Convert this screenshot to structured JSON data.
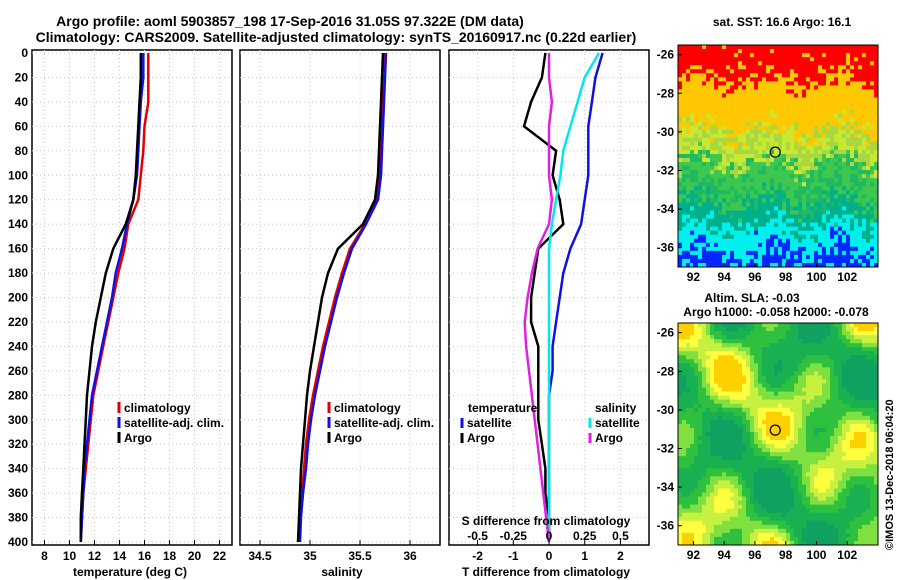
{
  "titles": {
    "line1": "Argo profile: aoml 5903857_198 17-Sep-2016 31.05S 97.322E (DM data)",
    "line2": "Climatology: CARS2009. Satellite-adjusted climatology: synTS_20160917.nc (0.22d earlier)",
    "sst": "sat. SST: 16.6 Argo: 16.1",
    "sla1": "Altim. SLA: -0.03",
    "sla2": "Argo h1000: -0.058 h2000: -0.078",
    "stamp": "©IMOS 13-Dec-2018 06:04:20"
  },
  "colors": {
    "climatology": "#e00000",
    "satellite": "#1010e0",
    "argo": "#000000",
    "sat_salinity": "#00e8e8",
    "argo_salinity": "#e020e0",
    "grid": "#c8c8c8"
  },
  "legends": {
    "climatology": "climatology",
    "satellite_adj": "satellite-adj. clim.",
    "argo": "Argo",
    "temperature_head": "temperature",
    "salinity_head": "salinity",
    "satellite": "satellite"
  },
  "chart_data": [
    {
      "type": "line",
      "title": "",
      "xlabel": "temperature (deg C)",
      "ylabel": "",
      "xlim": [
        7,
        23
      ],
      "ylim": [
        400,
        0
      ],
      "xticks": [
        8,
        10,
        12,
        14,
        16,
        18,
        20,
        22
      ],
      "xtick_labels": [
        "8",
        "10",
        "12",
        "14",
        "16",
        "18",
        "20",
        "22"
      ],
      "yticks": [
        0,
        20,
        40,
        60,
        80,
        100,
        120,
        140,
        160,
        180,
        200,
        220,
        240,
        260,
        280,
        300,
        320,
        340,
        360,
        380,
        400
      ],
      "ytick_labels": [
        "0",
        "20",
        "40",
        "60",
        "80",
        "100",
        "120",
        "140",
        "160",
        "180",
        "200",
        "220",
        "240",
        "260",
        "280",
        "300",
        "320",
        "340",
        "360",
        "380",
        "400"
      ],
      "depth": [
        0,
        20,
        40,
        60,
        80,
        100,
        120,
        140,
        160,
        180,
        200,
        220,
        240,
        260,
        280,
        300,
        320,
        340,
        360,
        380,
        400
      ],
      "series": [
        {
          "name": "climatology",
          "values": [
            16.3,
            16.3,
            16.3,
            16.0,
            15.9,
            15.7,
            15.5,
            14.7,
            14.4,
            13.9,
            13.5,
            13.1,
            12.7,
            12.3,
            11.9,
            11.7,
            11.5,
            11.3,
            11.1,
            11.0,
            10.9
          ]
        },
        {
          "name": "satellite-adj. clim.",
          "values": [
            15.9,
            15.9,
            15.7,
            15.6,
            15.5,
            15.4,
            15.1,
            14.6,
            14.2,
            13.7,
            13.4,
            13.0,
            12.6,
            12.2,
            11.8,
            11.6,
            11.4,
            11.2,
            11.1,
            11.0,
            10.9
          ]
        },
        {
          "name": "Argo",
          "values": [
            15.7,
            15.7,
            15.6,
            15.5,
            15.4,
            15.3,
            15.1,
            14.5,
            13.5,
            12.9,
            12.5,
            12.1,
            11.8,
            11.6,
            11.4,
            11.3,
            11.2,
            11.1,
            11.0,
            10.9,
            10.9
          ]
        }
      ]
    },
    {
      "type": "line",
      "xlabel": "salinity",
      "xlim": [
        34.3,
        36.3
      ],
      "ylim": [
        400,
        0
      ],
      "xticks": [
        34.5,
        35,
        35.5,
        36
      ],
      "xtick_labels": [
        "34.5",
        "35",
        "35.5",
        "36"
      ],
      "depth": [
        0,
        20,
        40,
        60,
        80,
        100,
        120,
        140,
        160,
        180,
        200,
        220,
        240,
        260,
        280,
        300,
        320,
        340,
        360,
        380,
        400
      ],
      "series": [
        {
          "name": "climatology",
          "values": [
            35.74,
            35.73,
            35.72,
            35.71,
            35.7,
            35.7,
            35.67,
            35.55,
            35.4,
            35.32,
            35.25,
            35.19,
            35.13,
            35.08,
            35.03,
            34.99,
            34.96,
            34.94,
            34.92,
            34.9,
            34.89
          ]
        },
        {
          "name": "satellite-adj. clim.",
          "values": [
            35.76,
            35.75,
            35.74,
            35.73,
            35.72,
            35.71,
            35.68,
            35.56,
            35.42,
            35.34,
            35.27,
            35.21,
            35.15,
            35.1,
            35.05,
            35.01,
            34.98,
            34.96,
            34.93,
            34.91,
            34.9
          ]
        },
        {
          "name": "Argo",
          "values": [
            35.73,
            35.72,
            35.71,
            35.7,
            35.69,
            35.68,
            35.65,
            35.53,
            35.28,
            35.18,
            35.12,
            35.08,
            35.04,
            35.0,
            34.97,
            34.95,
            34.93,
            34.91,
            34.9,
            34.89,
            34.88
          ]
        }
      ]
    },
    {
      "type": "line",
      "xlabel": "T difference from climatology",
      "xlabel_top": "S difference from climatology",
      "xlim": [
        -2.8,
        2.8
      ],
      "ylim": [
        400,
        0
      ],
      "xticks": [
        -2,
        -1,
        0,
        1,
        2
      ],
      "xtick_labels": [
        "-2",
        "-1",
        "0",
        "1",
        "2"
      ],
      "sticks": [
        -0.5,
        -0.25,
        0,
        0.25,
        0.5
      ],
      "stick_labels": [
        "-0.5",
        "-0.25",
        "0",
        "0.25",
        "0.5"
      ],
      "depth": [
        0,
        20,
        40,
        60,
        80,
        100,
        120,
        140,
        160,
        180,
        200,
        220,
        240,
        260,
        280,
        300,
        320,
        340,
        360,
        380,
        400
      ],
      "series": [
        {
          "name": "temperature satellite",
          "values": [
            1.5,
            1.3,
            1.2,
            1.1,
            1.1,
            1.1,
            1.0,
            0.9,
            0.6,
            0.4,
            0.3,
            0.2,
            0.1,
            0.1,
            0.0,
            0.0,
            0.0,
            0.0,
            0.0,
            0.0,
            0.0
          ]
        },
        {
          "name": "temperature Argo",
          "values": [
            -0.1,
            -0.2,
            -0.5,
            -0.7,
            0.2,
            0.1,
            0.3,
            0.4,
            -0.3,
            -0.4,
            -0.5,
            -0.5,
            -0.3,
            -0.3,
            -0.3,
            -0.3,
            -0.2,
            -0.1,
            -0.1,
            0.0,
            0.0
          ]
        },
        {
          "name": "salinity satellite",
          "values": [
            0.35,
            0.25,
            0.2,
            0.15,
            0.1,
            0.08,
            0.05,
            0.02,
            0.0,
            0.0,
            0.0,
            0.0,
            0.0,
            0.0,
            0.0,
            0.0,
            0.0,
            0.0,
            0.0,
            0.0,
            0.0
          ]
        },
        {
          "name": "salinity Argo",
          "values": [
            0.0,
            0.0,
            0.02,
            0.0,
            0.0,
            0.0,
            0.02,
            0.0,
            -0.08,
            -0.12,
            -0.15,
            -0.17,
            -0.16,
            -0.14,
            -0.12,
            -0.1,
            -0.08,
            -0.06,
            -0.04,
            -0.02,
            0.0
          ]
        }
      ]
    },
    {
      "type": "heatmap",
      "title": "sat. SST: 16.6 Argo: 16.1",
      "xlim": [
        91,
        104
      ],
      "ylim": [
        -37,
        -25.5
      ],
      "xticks": [
        92,
        94,
        96,
        98,
        100,
        102
      ],
      "xtick_labels": [
        "92",
        "94",
        "96",
        "98",
        "100",
        "102"
      ],
      "yticks": [
        -26,
        -28,
        -30,
        -32,
        -34,
        -36
      ],
      "ytick_labels": [
        "-26",
        "-28",
        "-30",
        "-32",
        "-34",
        "-36"
      ],
      "marker": [
        97.32,
        -31.05
      ]
    },
    {
      "type": "heatmap",
      "title": "Altim. SLA: -0.03",
      "xlim": [
        91,
        104
      ],
      "ylim": [
        -37,
        -25.5
      ],
      "xticks": [
        92,
        94,
        96,
        98,
        100,
        102
      ],
      "xtick_labels": [
        "92",
        "94",
        "96",
        "98",
        "100",
        "102"
      ],
      "yticks": [
        -26,
        -28,
        -30,
        -32,
        -34,
        -36
      ],
      "ytick_labels": [
        "-26",
        "-28",
        "-30",
        "-32",
        "-34",
        "-36"
      ],
      "marker": [
        97.32,
        -31.05
      ]
    }
  ]
}
